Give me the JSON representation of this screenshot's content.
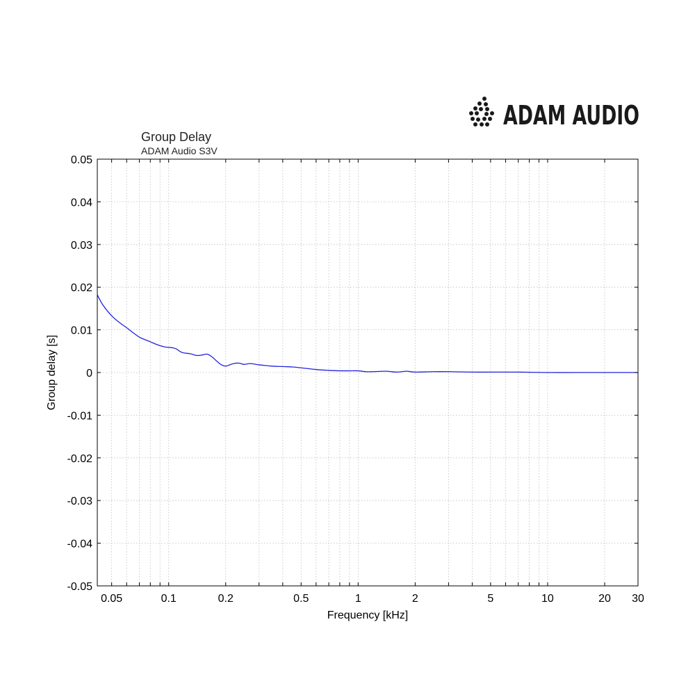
{
  "logo": {
    "text": "ADAM AUDIO"
  },
  "chart_data": {
    "type": "line",
    "title": "Group Delay",
    "subtitle": "ADAM Audio S3V",
    "xlabel": "Frequency [kHz]",
    "ylabel": "Group delay [s]",
    "xscale": "log",
    "xlim": [
      0.042,
      30
    ],
    "ylim": [
      -0.05,
      0.05
    ],
    "grid": true,
    "x_ticks": [
      0.05,
      0.1,
      0.2,
      0.5,
      1,
      2,
      5,
      10,
      20,
      30
    ],
    "x_tick_labels": [
      "0.05",
      "0.1",
      "0.2",
      "0.5",
      "1",
      "2",
      "5",
      "10",
      "20",
      "30"
    ],
    "x_minor_grid": [
      0.06,
      0.07,
      0.08,
      0.09,
      0.3,
      0.4,
      0.6,
      0.7,
      0.8,
      0.9,
      3,
      4,
      6,
      7,
      8,
      9
    ],
    "y_ticks": [
      0.05,
      0.04,
      0.03,
      0.02,
      0.01,
      0,
      -0.01,
      -0.02,
      -0.03,
      -0.04,
      -0.05
    ],
    "y_tick_labels": [
      "0.05",
      "0.04",
      "0.03",
      "0.02",
      "0.01",
      "0",
      "-0.01",
      "-0.02",
      "-0.03",
      "-0.04",
      "-0.05"
    ],
    "line_color": "#2222dd",
    "series": [
      {
        "x": [
          0.042,
          0.045,
          0.05,
          0.055,
          0.06,
          0.065,
          0.07,
          0.075,
          0.08,
          0.085,
          0.09,
          0.095,
          0.1,
          0.105,
          0.11,
          0.115,
          0.12,
          0.13,
          0.14,
          0.15,
          0.16,
          0.17,
          0.18,
          0.19,
          0.2,
          0.21,
          0.22,
          0.235,
          0.25,
          0.27,
          0.3,
          0.35,
          0.4,
          0.45,
          0.5,
          0.6,
          0.7,
          0.8,
          0.9,
          1.0,
          1.1,
          1.2,
          1.4,
          1.6,
          1.8,
          2.0,
          2.5,
          3.0,
          4.0,
          5.0,
          7.0,
          10,
          15,
          20,
          30
        ],
        "y": [
          0.0182,
          0.0158,
          0.0133,
          0.0117,
          0.0105,
          0.0093,
          0.0083,
          0.0077,
          0.0072,
          0.0067,
          0.0063,
          0.006,
          0.0059,
          0.0058,
          0.0055,
          0.0049,
          0.0046,
          0.0044,
          0.004,
          0.0041,
          0.0043,
          0.0036,
          0.0026,
          0.0018,
          0.0015,
          0.0018,
          0.0021,
          0.0022,
          0.0019,
          0.0021,
          0.0018,
          0.0015,
          0.0014,
          0.0013,
          0.0011,
          0.0007,
          0.0005,
          0.0004,
          0.0004,
          0.0004,
          0.0002,
          0.0002,
          0.0003,
          0.0001,
          0.0003,
          0.0001,
          0.0002,
          0.0002,
          0.0001,
          0.0001,
          0.0001,
          0.0,
          0.0,
          0.0,
          0.0
        ]
      }
    ]
  }
}
